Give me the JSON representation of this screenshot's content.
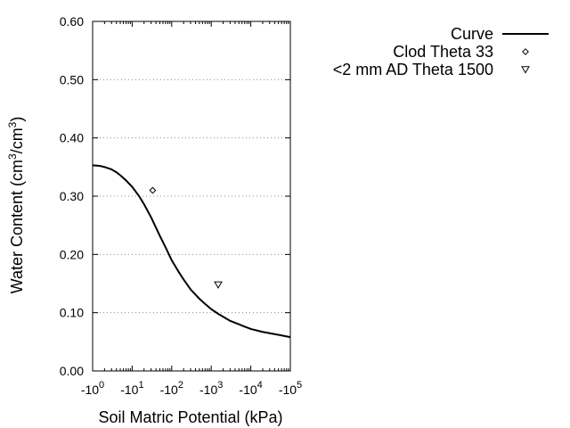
{
  "chart_data": {
    "type": "scatter",
    "xlabel": "Soil Matric Potential (kPa)",
    "ylabel": "Water Content (cm³/cm³)",
    "x_scale": "log",
    "x_axis_direction": "negative",
    "xlim": [
      1,
      100000
    ],
    "ylim": [
      0.0,
      0.6
    ],
    "x_ticks": [
      {
        "value": 1,
        "base": "-10",
        "exp": "0"
      },
      {
        "value": 10,
        "base": "-10",
        "exp": "1"
      },
      {
        "value": 100,
        "base": "-10",
        "exp": "2"
      },
      {
        "value": 1000,
        "base": "-10",
        "exp": "3"
      },
      {
        "value": 10000,
        "base": "-10",
        "exp": "4"
      },
      {
        "value": 100000,
        "base": "-10",
        "exp": "5"
      }
    ],
    "y_ticks": [
      {
        "value": 0.0,
        "label": "0.00"
      },
      {
        "value": 0.1,
        "label": "0.10"
      },
      {
        "value": 0.2,
        "label": "0.20"
      },
      {
        "value": 0.3,
        "label": "0.30"
      },
      {
        "value": 0.4,
        "label": "0.40"
      },
      {
        "value": 0.5,
        "label": "0.50"
      },
      {
        "value": 0.6,
        "label": "0.60"
      }
    ],
    "grid": "horizontal dotted",
    "legend_position": "top-right outside plot",
    "series": [
      {
        "name": "Curve",
        "kind": "line",
        "color": "#000000",
        "points": [
          [
            1,
            0.353
          ],
          [
            1.5,
            0.352
          ],
          [
            2,
            0.35
          ],
          [
            3,
            0.346
          ],
          [
            4,
            0.341
          ],
          [
            5,
            0.336
          ],
          [
            7,
            0.327
          ],
          [
            10,
            0.316
          ],
          [
            15,
            0.3
          ],
          [
            20,
            0.286
          ],
          [
            30,
            0.264
          ],
          [
            50,
            0.232
          ],
          [
            70,
            0.212
          ],
          [
            100,
            0.19
          ],
          [
            150,
            0.17
          ],
          [
            200,
            0.157
          ],
          [
            300,
            0.14
          ],
          [
            500,
            0.124
          ],
          [
            700,
            0.115
          ],
          [
            1000,
            0.106
          ],
          [
            1500,
            0.098
          ],
          [
            2000,
            0.093
          ],
          [
            3000,
            0.086
          ],
          [
            5000,
            0.08
          ],
          [
            7000,
            0.076
          ],
          [
            10000,
            0.072
          ],
          [
            20000,
            0.067
          ],
          [
            50000,
            0.062
          ],
          [
            100000,
            0.058
          ]
        ]
      },
      {
        "name": "Clod Theta 33",
        "kind": "marker",
        "marker": "diamond",
        "points": [
          [
            33,
            0.31
          ]
        ]
      },
      {
        "name": "<2 mm AD Theta 1500",
        "kind": "marker",
        "marker": "triangle-down",
        "points": [
          [
            1500,
            0.148
          ]
        ]
      }
    ]
  }
}
